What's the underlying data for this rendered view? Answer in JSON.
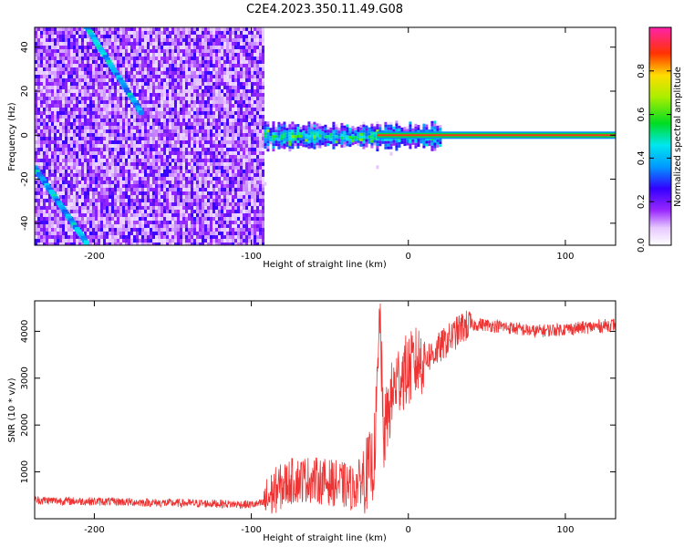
{
  "title": "C2E4.2023.350.11.49.G08",
  "chart_data": [
    {
      "type": "heatmap",
      "xlabel": "Height of straight line (km)",
      "ylabel": "Frequency (Hz)",
      "xlim": [
        -238,
        132
      ],
      "ylim": [
        -50,
        49
      ],
      "xticks": [
        -200,
        -100,
        0,
        100
      ],
      "yticks": [
        -40,
        -20,
        0,
        20,
        40
      ],
      "colorbar": {
        "label": "Normalized spectral amplitude",
        "range": [
          0,
          1
        ],
        "ticks": [
          "0.0",
          "0.2",
          "0.4",
          "0.6",
          "0.8"
        ],
        "tick_values": [
          0,
          0.2,
          0.4,
          0.6,
          0.8
        ]
      },
      "regions": [
        {
          "name": "broadband noise",
          "x": [
            -238,
            -92
          ],
          "y": [
            -50,
            49
          ],
          "amplitude": 0.15
        },
        {
          "name": "tone band (noisy)",
          "x": [
            -92,
            20
          ],
          "y": [
            -4,
            4
          ],
          "amplitude": 0.45
        },
        {
          "name": "carrier line",
          "x": [
            -20,
            132
          ],
          "y": [
            -1,
            1
          ],
          "amplitude": 0.95
        }
      ],
      "streaks": [
        {
          "from": [
            -238,
            -15
          ],
          "to": [
            -205,
            -49
          ]
        },
        {
          "from": [
            -205,
            49
          ],
          "to": [
            -170,
            10
          ]
        }
      ]
    },
    {
      "type": "line",
      "xlabel": "Height of straight line (km)",
      "ylabel": "SNR (10 * v/v)",
      "xlim": [
        -238,
        132
      ],
      "ylim": [
        0,
        4650
      ],
      "xticks": [
        -200,
        -100,
        0,
        100
      ],
      "yticks": [
        1000,
        2000,
        3000,
        4000
      ],
      "series": [
        {
          "color": "#ee3333",
          "x": [
            -238,
            -220,
            -200,
            -180,
            -160,
            -140,
            -120,
            -100,
            -92,
            -85,
            -75,
            -65,
            -55,
            -45,
            -35,
            -28,
            -22,
            -20,
            -18,
            -16,
            -12,
            -8,
            -4,
            0,
            4,
            8,
            15,
            25,
            35,
            45,
            60,
            80,
            100,
            120,
            132
          ],
          "y": [
            400,
            380,
            370,
            360,
            340,
            330,
            320,
            300,
            330,
            600,
            800,
            850,
            800,
            750,
            650,
            900,
            1200,
            2500,
            4500,
            1700,
            2400,
            2900,
            3100,
            3150,
            3300,
            3400,
            3500,
            3800,
            4100,
            4150,
            4100,
            4000,
            4050,
            4100,
            4150
          ]
        }
      ]
    }
  ]
}
